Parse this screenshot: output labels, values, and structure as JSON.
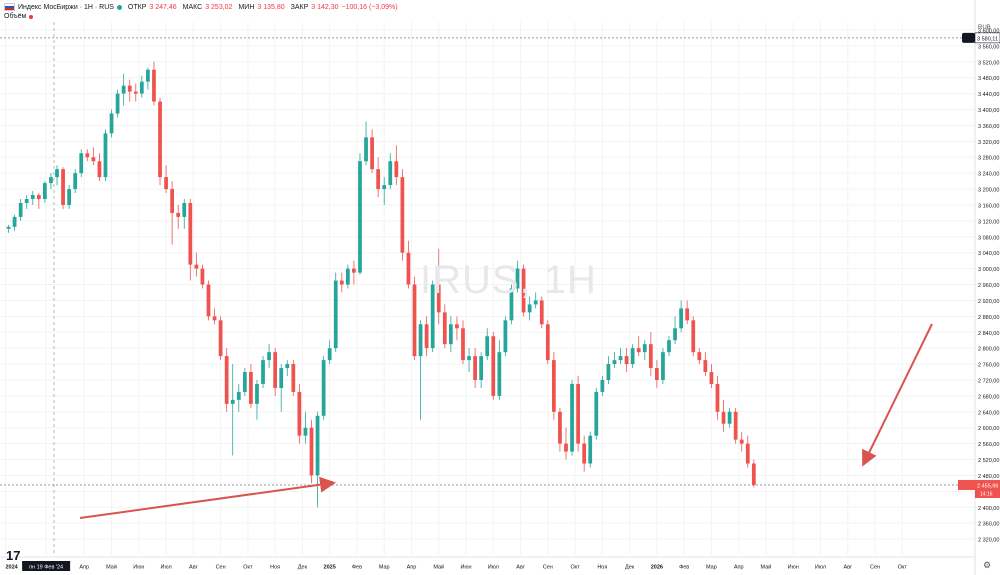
{
  "header": {
    "symbol": "Индекс МосБиржи · 1Н · RUS",
    "open_label": "ОТКР",
    "open_value": "3 247,46",
    "high_label": "МАКС",
    "high_value": "3 253,02",
    "low_label": "МИН",
    "low_value": "3 135,80",
    "close_label": "ЗАКР",
    "close_value": "3 142,30",
    "change_value": "−100,16 (−3,09%)",
    "volume_label": "Объём"
  },
  "watermark": "IRUS, 1H",
  "unit_label": "RUB",
  "price_tags": {
    "top_value": "3 580,11",
    "current_value": "2 455,96",
    "current_sub": "14:16"
  },
  "chart_data": {
    "type": "candlestick",
    "title": "",
    "xlabel": "",
    "ylabel": "",
    "ylim": [
      2280,
      3620
    ],
    "y_ticks": [
      2320,
      2360,
      2400,
      2440,
      2480,
      2520,
      2560,
      2600,
      2640,
      2680,
      2720,
      2760,
      2800,
      2840,
      2880,
      2920,
      2960,
      3000,
      3040,
      3080,
      3120,
      3160,
      3200,
      3240,
      3280,
      3320,
      3360,
      3400,
      3440,
      3480,
      3520,
      3560,
      3600
    ],
    "y_tick_labels": [
      "2 320,00",
      "2 360,00",
      "2 400,00",
      "2 440,00",
      "2 480,00",
      "2 520,00",
      "2 560,00",
      "2 600,00",
      "2 640,00",
      "2 680,00",
      "2 720,00",
      "2 760,00",
      "2 800,00",
      "2 840,00",
      "2 880,00",
      "2 920,00",
      "2 960,00",
      "3 000,00",
      "3 040,00",
      "3 080,00",
      "3 120,00",
      "3 160,00",
      "3 200,00",
      "3 240,00",
      "3 280,00",
      "3 320,00",
      "3 360,00",
      "3 400,00",
      "3 440,00",
      "3 480,00",
      "3 520,00",
      "3 560,00",
      "3 600,00"
    ],
    "x_labels": [
      "2024",
      "пн 19 Фев '24",
      "Апр",
      "Май",
      "Июн",
      "Июл",
      "Авг",
      "Сен",
      "Окт",
      "Ноя",
      "Дек",
      "2025",
      "Фев",
      "Мар",
      "Апр",
      "Май",
      "Июн",
      "Июл",
      "Авг",
      "Сен",
      "Окт",
      "Ноя",
      "Дек",
      "2026",
      "Фев",
      "Мар",
      "Апр",
      "Май",
      "Июн",
      "Июл",
      "Авг",
      "Сен",
      "Окт"
    ],
    "x_label_weeks": [
      0,
      6.7,
      13,
      17.5,
      22,
      26.5,
      31,
      35.5,
      40,
      44.5,
      49,
      53.5,
      58,
      62.5,
      67,
      71.5,
      76,
      80.5,
      85,
      89.5,
      94,
      98.5,
      103,
      107.5,
      112,
      116.5,
      121,
      125.5,
      130,
      134.5,
      139,
      143.5,
      148
    ],
    "horizontal_levels": [
      3580.11,
      2455.96
    ],
    "crosshair_week": 8,
    "candles": [
      [
        3100,
        3110,
        3090,
        3105
      ],
      [
        3105,
        3135,
        3095,
        3130
      ],
      [
        3130,
        3175,
        3120,
        3165
      ],
      [
        3165,
        3185,
        3150,
        3175
      ],
      [
        3175,
        3195,
        3160,
        3185
      ],
      [
        3185,
        3190,
        3150,
        3175
      ],
      [
        3175,
        3220,
        3165,
        3215
      ],
      [
        3215,
        3240,
        3200,
        3230
      ],
      [
        3230,
        3260,
        3210,
        3250
      ],
      [
        3250,
        3255,
        3150,
        3160
      ],
      [
        3160,
        3210,
        3150,
        3200
      ],
      [
        3200,
        3250,
        3190,
        3240
      ],
      [
        3240,
        3300,
        3230,
        3290
      ],
      [
        3290,
        3300,
        3270,
        3280
      ],
      [
        3280,
        3305,
        3260,
        3270
      ],
      [
        3270,
        3290,
        3220,
        3230
      ],
      [
        3230,
        3350,
        3220,
        3340
      ],
      [
        3340,
        3400,
        3330,
        3390
      ],
      [
        3390,
        3450,
        3380,
        3440
      ],
      [
        3440,
        3490,
        3410,
        3460
      ],
      [
        3460,
        3475,
        3420,
        3445
      ],
      [
        3445,
        3465,
        3420,
        3440
      ],
      [
        3440,
        3485,
        3430,
        3470
      ],
      [
        3470,
        3505,
        3450,
        3500
      ],
      [
        3500,
        3520,
        3410,
        3420
      ],
      [
        3420,
        3430,
        3210,
        3230
      ],
      [
        3230,
        3260,
        3190,
        3200
      ],
      [
        3200,
        3220,
        3060,
        3140
      ],
      [
        3140,
        3160,
        3100,
        3130
      ],
      [
        3130,
        3175,
        3100,
        3165
      ],
      [
        3165,
        3175,
        2970,
        3010
      ],
      [
        3010,
        3040,
        2980,
        3000
      ],
      [
        3000,
        3010,
        2950,
        2960
      ],
      [
        2960,
        2970,
        2870,
        2880
      ],
      [
        2880,
        2900,
        2860,
        2870
      ],
      [
        2870,
        2880,
        2770,
        2780
      ],
      [
        2780,
        2800,
        2640,
        2660
      ],
      [
        2660,
        2760,
        2530,
        2670
      ],
      [
        2670,
        2710,
        2640,
        2690
      ],
      [
        2690,
        2750,
        2680,
        2740
      ],
      [
        2740,
        2760,
        2650,
        2660
      ],
      [
        2660,
        2720,
        2620,
        2710
      ],
      [
        2710,
        2780,
        2700,
        2770
      ],
      [
        2770,
        2810,
        2750,
        2790
      ],
      [
        2790,
        2800,
        2680,
        2700
      ],
      [
        2700,
        2760,
        2640,
        2750
      ],
      [
        2750,
        2770,
        2730,
        2760
      ],
      [
        2760,
        2770,
        2680,
        2690
      ],
      [
        2690,
        2710,
        2560,
        2580
      ],
      [
        2580,
        2640,
        2560,
        2600
      ],
      [
        2600,
        2620,
        2460,
        2480
      ],
      [
        2480,
        2640,
        2400,
        2630
      ],
      [
        2630,
        2780,
        2620,
        2770
      ],
      [
        2770,
        2820,
        2760,
        2800
      ],
      [
        2800,
        2990,
        2790,
        2970
      ],
      [
        2970,
        2990,
        2940,
        2960
      ],
      [
        2960,
        3010,
        2950,
        3000
      ],
      [
        3000,
        3020,
        2960,
        2990
      ],
      [
        2990,
        3290,
        2985,
        3270
      ],
      [
        3270,
        3370,
        3260,
        3330
      ],
      [
        3330,
        3350,
        3240,
        3250
      ],
      [
        3250,
        3280,
        3180,
        3200
      ],
      [
        3200,
        3230,
        3160,
        3210
      ],
      [
        3210,
        3290,
        3200,
        3270
      ],
      [
        3270,
        3310,
        3210,
        3230
      ],
      [
        3230,
        3250,
        3020,
        3040
      ],
      [
        3040,
        3070,
        2950,
        2960
      ],
      [
        2960,
        2980,
        2770,
        2780
      ],
      [
        2780,
        2870,
        2620,
        2860
      ],
      [
        2860,
        2880,
        2780,
        2800
      ],
      [
        2800,
        2970,
        2790,
        2960
      ],
      [
        2960,
        3050,
        2860,
        2890
      ],
      [
        2890,
        2910,
        2800,
        2810
      ],
      [
        2810,
        2880,
        2790,
        2860
      ],
      [
        2860,
        2880,
        2820,
        2850
      ],
      [
        2850,
        2870,
        2760,
        2770
      ],
      [
        2770,
        2800,
        2740,
        2780
      ],
      [
        2780,
        2800,
        2700,
        2720
      ],
      [
        2720,
        2790,
        2700,
        2780
      ],
      [
        2780,
        2850,
        2770,
        2830
      ],
      [
        2830,
        2840,
        2670,
        2680
      ],
      [
        2680,
        2820,
        2670,
        2790
      ],
      [
        2790,
        2880,
        2780,
        2870
      ],
      [
        2870,
        2960,
        2860,
        2950
      ],
      [
        2950,
        3020,
        2940,
        3000
      ],
      [
        3000,
        3010,
        2880,
        2890
      ],
      [
        2890,
        2930,
        2870,
        2910
      ],
      [
        2910,
        2940,
        2900,
        2920
      ],
      [
        2920,
        2930,
        2850,
        2860
      ],
      [
        2860,
        2870,
        2760,
        2770
      ],
      [
        2770,
        2790,
        2620,
        2640
      ],
      [
        2640,
        2650,
        2540,
        2560
      ],
      [
        2560,
        2600,
        2520,
        2540
      ],
      [
        2540,
        2720,
        2530,
        2710
      ],
      [
        2710,
        2730,
        2540,
        2560
      ],
      [
        2560,
        2580,
        2490,
        2510
      ],
      [
        2510,
        2590,
        2500,
        2580
      ],
      [
        2580,
        2700,
        2570,
        2690
      ],
      [
        2690,
        2730,
        2680,
        2720
      ],
      [
        2720,
        2780,
        2710,
        2760
      ],
      [
        2760,
        2790,
        2750,
        2770
      ],
      [
        2770,
        2800,
        2760,
        2780
      ],
      [
        2780,
        2800,
        2740,
        2760
      ],
      [
        2760,
        2810,
        2750,
        2800
      ],
      [
        2800,
        2830,
        2780,
        2790
      ],
      [
        2790,
        2820,
        2770,
        2810
      ],
      [
        2810,
        2840,
        2730,
        2750
      ],
      [
        2750,
        2770,
        2700,
        2720
      ],
      [
        2720,
        2800,
        2710,
        2790
      ],
      [
        2790,
        2830,
        2780,
        2820
      ],
      [
        2820,
        2880,
        2810,
        2850
      ],
      [
        2850,
        2920,
        2840,
        2900
      ],
      [
        2900,
        2920,
        2860,
        2870
      ],
      [
        2870,
        2880,
        2780,
        2790
      ],
      [
        2790,
        2800,
        2760,
        2770
      ],
      [
        2770,
        2790,
        2730,
        2740
      ],
      [
        2740,
        2760,
        2700,
        2710
      ],
      [
        2710,
        2730,
        2620,
        2640
      ],
      [
        2640,
        2670,
        2590,
        2610
      ],
      [
        2610,
        2650,
        2600,
        2640
      ],
      [
        2640,
        2650,
        2560,
        2570
      ],
      [
        2570,
        2590,
        2540,
        2560
      ],
      [
        2560,
        2580,
        2500,
        2510
      ],
      [
        2510,
        2520,
        2450,
        2456
      ]
    ]
  }
}
